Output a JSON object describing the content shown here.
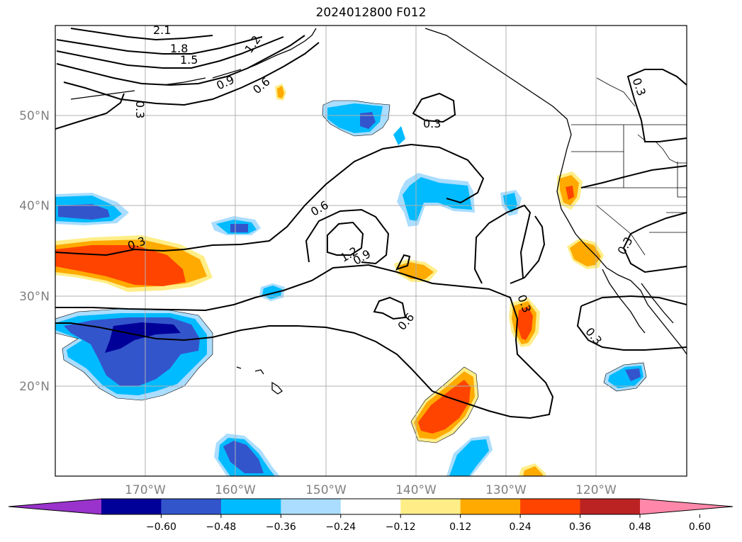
{
  "title": "2024012800 F012",
  "map": {
    "lat_labels": [
      "50°N",
      "40°N",
      "30°N",
      "20°N"
    ],
    "lon_labels": [
      "170°W",
      "160°W",
      "150°W",
      "140°W",
      "130°W",
      "120°W"
    ],
    "contour_labels": [
      "2.1",
      "1.8",
      "1.5",
      "1.2",
      "0.9",
      "0.6",
      "0.3",
      "0.3",
      "0.3",
      "0.6",
      "1.2",
      "0.9",
      "0.6",
      "0.3",
      "0.3",
      "0.3",
      "0.3"
    ]
  },
  "colorbar": {
    "colors": [
      "#9933cc",
      "#000099",
      "#3355cc",
      "#00bbff",
      "#aaddff",
      "#ffffff",
      "#ffee88",
      "#ffaa00",
      "#ff4400",
      "#bb2222",
      "#ff88aa"
    ],
    "ticks": [
      "−0.60",
      "−0.48",
      "−0.36",
      "−0.24",
      "−0.12",
      "0.12",
      "0.24",
      "0.36",
      "0.48",
      "0.60"
    ]
  }
}
